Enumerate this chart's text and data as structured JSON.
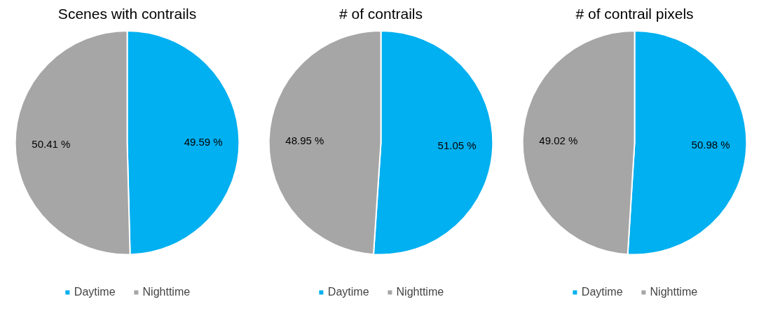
{
  "chart_data": [
    {
      "type": "pie",
      "title": "Scenes with contrails",
      "categories": [
        "Daytime",
        "Nighttime"
      ],
      "values": [
        49.59,
        50.41
      ],
      "colors": [
        "#00b0f0",
        "#a6a6a6"
      ],
      "value_labels": [
        "49.59 %",
        "50.41 %"
      ],
      "legend": "bottom"
    },
    {
      "type": "pie",
      "title": "# of contrails",
      "categories": [
        "Daytime",
        "Nighttime"
      ],
      "values": [
        51.05,
        48.95
      ],
      "colors": [
        "#00b0f0",
        "#a6a6a6"
      ],
      "value_labels": [
        "51.05 %",
        "48.95 %"
      ],
      "legend": "bottom"
    },
    {
      "type": "pie",
      "title": "# of contrail pixels",
      "categories": [
        "Daytime",
        "Nighttime"
      ],
      "values": [
        50.98,
        49.02
      ],
      "colors": [
        "#00b0f0",
        "#a6a6a6"
      ],
      "value_labels": [
        "50.98 %",
        "49.02 %"
      ],
      "legend": "bottom"
    }
  ]
}
